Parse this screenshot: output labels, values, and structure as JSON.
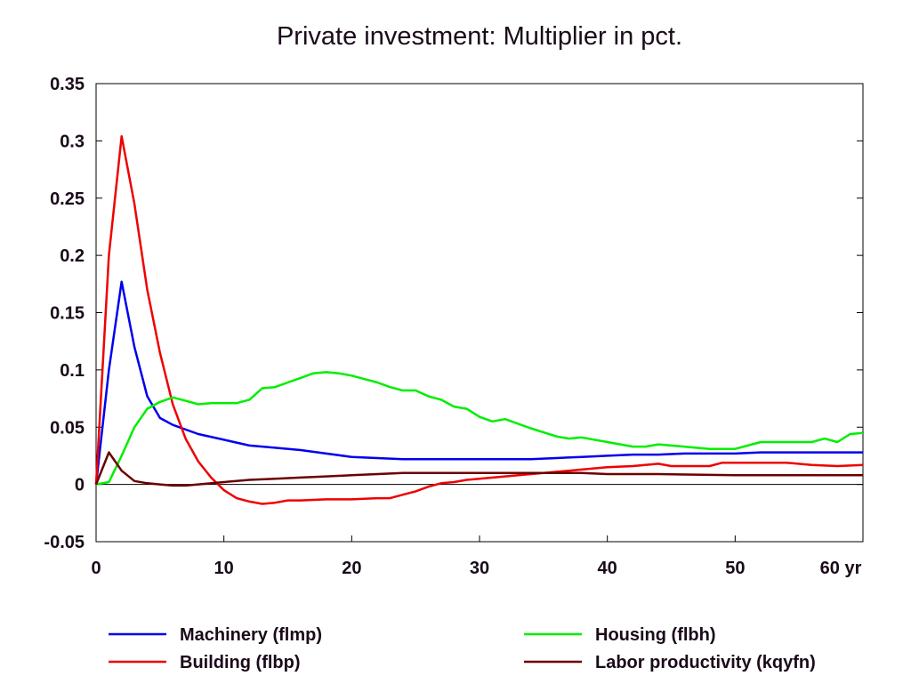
{
  "chart_data": {
    "type": "line",
    "title": "Private investment: Multiplier in pct.",
    "x_unit_label": "yr",
    "xlim": [
      0,
      60
    ],
    "ylim": [
      -0.05,
      0.35
    ],
    "x_ticks": [
      0,
      10,
      20,
      30,
      40,
      50,
      60
    ],
    "x_tick_labels": [
      "0",
      "10",
      "20",
      "30",
      "40",
      "50",
      "60 yr"
    ],
    "y_ticks": [
      -0.05,
      0,
      0.05,
      0.1,
      0.15,
      0.2,
      0.25,
      0.3,
      0.35
    ],
    "y_tick_labels": [
      "-0.05",
      "0",
      "0.05",
      "0.1",
      "0.15",
      "0.2",
      "0.25",
      "0.3",
      "0.35"
    ],
    "zero_line": true,
    "grid": false,
    "legend_position": "bottom",
    "series": [
      {
        "name": "Machinery (flmp)",
        "color": "#0000ee",
        "x": [
          0,
          1,
          2,
          3,
          4,
          5,
          6,
          8,
          10,
          12,
          14,
          16,
          18,
          20,
          22,
          24,
          26,
          28,
          30,
          32,
          34,
          36,
          38,
          40,
          42,
          44,
          46,
          48,
          50,
          52,
          54,
          56,
          58,
          60
        ],
        "y": [
          0,
          0.1,
          0.177,
          0.12,
          0.077,
          0.058,
          0.052,
          0.044,
          0.039,
          0.034,
          0.032,
          0.03,
          0.027,
          0.024,
          0.023,
          0.022,
          0.022,
          0.022,
          0.022,
          0.022,
          0.022,
          0.023,
          0.024,
          0.025,
          0.026,
          0.026,
          0.027,
          0.027,
          0.027,
          0.028,
          0.028,
          0.028,
          0.028,
          0.028
        ]
      },
      {
        "name": "Building (flbp)",
        "color": "#ee0000",
        "x": [
          0,
          1,
          2,
          3,
          4,
          5,
          6,
          7,
          8,
          9,
          10,
          11,
          12,
          13,
          14,
          15,
          16,
          18,
          20,
          22,
          23,
          24,
          25,
          26,
          27,
          28,
          29,
          30,
          32,
          34,
          36,
          38,
          40,
          42,
          44,
          45,
          46,
          48,
          49,
          50,
          52,
          54,
          56,
          58,
          60
        ],
        "y": [
          0,
          0.2,
          0.304,
          0.245,
          0.17,
          0.115,
          0.07,
          0.04,
          0.02,
          0.006,
          -0.005,
          -0.012,
          -0.015,
          -0.017,
          -0.016,
          -0.014,
          -0.014,
          -0.013,
          -0.013,
          -0.012,
          -0.012,
          -0.009,
          -0.006,
          -0.002,
          0.001,
          0.002,
          0.004,
          0.005,
          0.007,
          0.009,
          0.011,
          0.013,
          0.015,
          0.016,
          0.018,
          0.016,
          0.016,
          0.016,
          0.019,
          0.019,
          0.019,
          0.019,
          0.017,
          0.016,
          0.017
        ]
      },
      {
        "name": "Housing (flbh)",
        "color": "#00ee00",
        "x": [
          0,
          1,
          2,
          3,
          4,
          5,
          6,
          7,
          8,
          9,
          10,
          11,
          12,
          13,
          14,
          15,
          16,
          17,
          18,
          19,
          20,
          21,
          22,
          23,
          24,
          25,
          26,
          27,
          28,
          29,
          30,
          31,
          32,
          34,
          36,
          37,
          38,
          40,
          42,
          43,
          44,
          46,
          48,
          50,
          52,
          54,
          56,
          57,
          58,
          59,
          60
        ],
        "y": [
          0,
          0.002,
          0.025,
          0.05,
          0.066,
          0.072,
          0.076,
          0.073,
          0.07,
          0.071,
          0.071,
          0.071,
          0.074,
          0.084,
          0.085,
          0.089,
          0.093,
          0.097,
          0.098,
          0.097,
          0.095,
          0.092,
          0.089,
          0.085,
          0.082,
          0.082,
          0.077,
          0.074,
          0.068,
          0.066,
          0.059,
          0.055,
          0.057,
          0.049,
          0.042,
          0.04,
          0.041,
          0.037,
          0.033,
          0.033,
          0.035,
          0.033,
          0.031,
          0.031,
          0.037,
          0.037,
          0.037,
          0.04,
          0.037,
          0.044,
          0.045
        ]
      },
      {
        "name": "Labor productivity (kqyfn)",
        "color": "#6b0000",
        "x": [
          0,
          1,
          2,
          3,
          4,
          5,
          6,
          7,
          8,
          10,
          12,
          14,
          16,
          18,
          20,
          22,
          24,
          26,
          28,
          30,
          32,
          34,
          36,
          38,
          40,
          44,
          50,
          54,
          58,
          60
        ],
        "y": [
          0,
          0.028,
          0.012,
          0.003,
          0.001,
          0.0,
          -0.001,
          -0.001,
          0.0,
          0.002,
          0.004,
          0.005,
          0.006,
          0.007,
          0.008,
          0.009,
          0.01,
          0.01,
          0.01,
          0.01,
          0.01,
          0.01,
          0.01,
          0.01,
          0.009,
          0.009,
          0.008,
          0.008,
          0.008,
          0.008
        ]
      }
    ]
  }
}
